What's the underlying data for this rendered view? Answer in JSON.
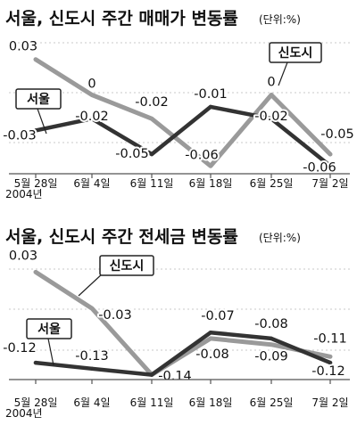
{
  "colors": {
    "seoul": "#333333",
    "sindosi": "#9a9a9a"
  },
  "chart_data": [
    {
      "type": "line",
      "title": "서울, 신도시 주간 매매가 변동률",
      "unit": "(단위:%)",
      "categories": [
        "5월 28일",
        "6월 4일",
        "6월 11일",
        "6월 18일",
        "6월 25일",
        "7월 2일"
      ],
      "year_label": "2004년",
      "series": [
        {
          "name": "서울",
          "values": [
            -0.03,
            -0.02,
            -0.05,
            -0.01,
            -0.02,
            -0.06
          ],
          "labels": [
            "-0.03",
            "-0.02",
            "-0.05",
            "-0.01",
            "-0.02",
            "-0.06"
          ]
        },
        {
          "name": "신도시",
          "values": [
            0.03,
            0,
            -0.02,
            -0.06,
            0,
            -0.05
          ],
          "labels": [
            "0.03",
            "0",
            "-0.02",
            "-0.06",
            "0",
            "-0.05"
          ]
        }
      ],
      "ylim": [
        -0.065,
        0.035
      ],
      "grid": true
    },
    {
      "type": "line",
      "title": "서울, 신도시 주간 전세금 변동률",
      "unit": "(단위:%)",
      "categories": [
        "5월 28일",
        "6월 4일",
        "6월 11일",
        "6월 18일",
        "6월 25일",
        "7월 2일"
      ],
      "year_label": "2004년",
      "series": [
        {
          "name": "서울",
          "values": [
            -0.12,
            -0.13,
            -0.14,
            -0.07,
            -0.08,
            -0.12
          ],
          "labels": [
            "-0.12",
            "-0.13",
            "-0.14",
            "-0.07",
            "-0.08",
            "-0.12"
          ]
        },
        {
          "name": "신도시",
          "values": [
            0.03,
            -0.03,
            -0.14,
            -0.08,
            -0.09,
            -0.11
          ],
          "labels": [
            "0.03",
            "-0.03",
            "",
            "-0.08",
            "-0.09",
            "-0.11"
          ]
        }
      ],
      "ylim": [
        -0.145,
        0.035
      ],
      "grid": true
    }
  ]
}
